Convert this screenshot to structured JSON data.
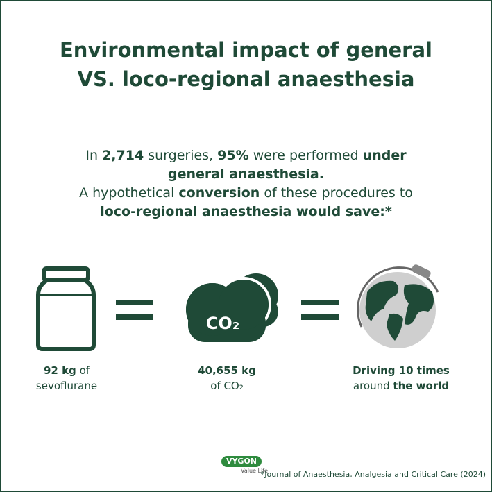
{
  "title": "Environmental impact of general VS. loco-regional anaesthesia",
  "intro": [
    [
      {
        "text": "In",
        "bold": false
      },
      {
        "text": "2,714",
        "bold": true
      },
      {
        "text": "surgeries,",
        "bold": false
      },
      {
        "text": "95%",
        "bold": true
      },
      {
        "text": "were performed",
        "bold": false
      },
      {
        "text": "under general anaesthesia.",
        "bold": true
      }
    ],
    [
      {
        "text": "A hypothetical",
        "bold": false
      },
      {
        "text": "conversion",
        "bold": true
      },
      {
        "text": "of these procedures to",
        "bold": false
      },
      {
        "text": "loco-regional anaesthesia would save:*",
        "bold": true
      }
    ]
  ],
  "cloud_label": "CO₂",
  "items": [
    {
      "caption": [
        [
          {
            "text": "92 kg",
            "bold": true
          },
          {
            "text": "of",
            "bold": false
          }
        ],
        [
          {
            "text": "sevoflurane",
            "bold": false
          }
        ]
      ]
    },
    {
      "caption": [
        [
          {
            "text": "40,655 kg",
            "bold": true
          }
        ],
        [
          {
            "text": "of CO₂",
            "bold": false
          }
        ]
      ]
    },
    {
      "caption": [
        [
          {
            "text": "Driving 10 times",
            "bold": true
          }
        ],
        [
          {
            "text": "around",
            "bold": false
          },
          {
            "text": "the world",
            "bold": true
          }
        ]
      ]
    }
  ],
  "logo": {
    "brand": "VYGON",
    "tagline": "Value Life"
  },
  "footnote": "*Journal of Anaesthesia, Analgesia and Critical Care (2024)"
}
